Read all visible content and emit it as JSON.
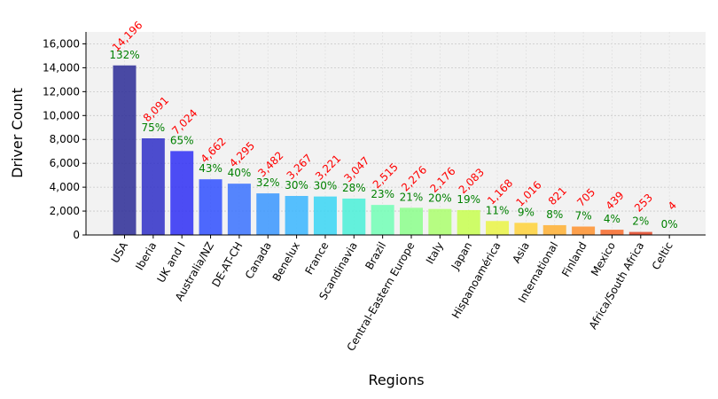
{
  "chart_data": {
    "type": "bar",
    "title": "",
    "xlabel": "Regions",
    "ylabel": "Driver Count",
    "ylim": [
      0,
      17000
    ],
    "yticks": [
      0,
      2000,
      4000,
      6000,
      8000,
      10000,
      12000,
      14000,
      16000
    ],
    "ytick_labels": [
      "0",
      "2,000",
      "4,000",
      "6,000",
      "8,000",
      "10,000",
      "12,000",
      "14,000",
      "16,000"
    ],
    "grid": true,
    "categories": [
      "USA",
      "Iberia",
      "UK and I",
      "Australia/NZ",
      "DE-AT-CH",
      "Canada",
      "Benelux",
      "France",
      "Scandinavia",
      "Brazil",
      "Central-Eastern Europe",
      "Italy",
      "Japan",
      "Hispanoamérica",
      "Asia",
      "International",
      "Finland",
      "Mexico",
      "Africa/South Africa",
      "Celtic"
    ],
    "values": [
      14196,
      8091,
      7024,
      4662,
      4295,
      3482,
      3267,
      3221,
      3047,
      2515,
      2276,
      2176,
      2083,
      1168,
      1016,
      821,
      705,
      439,
      253,
      4
    ],
    "value_labels": [
      "14,196",
      "8,091",
      "7,024",
      "4,662",
      "4,295",
      "3,482",
      "3,267",
      "3,221",
      "3,047",
      "2,515",
      "2,276",
      "2,176",
      "2,083",
      "1,168",
      "1,016",
      "821",
      "705",
      "439",
      "253",
      "4"
    ],
    "percent_labels": [
      "132%",
      "75%",
      "65%",
      "43%",
      "40%",
      "32%",
      "30%",
      "30%",
      "28%",
      "23%",
      "21%",
      "20%",
      "19%",
      "11%",
      "9%",
      "8%",
      "7%",
      "4%",
      "2%",
      "0%"
    ],
    "bar_colors": [
      "#2b2b96",
      "#2f2fc8",
      "#2f2ff5",
      "#3050ff",
      "#3a72ff",
      "#3a96ff",
      "#3ab6ff",
      "#3ad6f5",
      "#4af0d8",
      "#72ffb6",
      "#8cff8c",
      "#acff6e",
      "#c8ff50",
      "#eaf545",
      "#ffd23a",
      "#ffb032",
      "#ff922e",
      "#f86a2a",
      "#e24424",
      "#c81e1e"
    ],
    "value_label_color": "#ff0000",
    "percent_label_color": "#008000",
    "plot_background": "#f2f2f2"
  }
}
